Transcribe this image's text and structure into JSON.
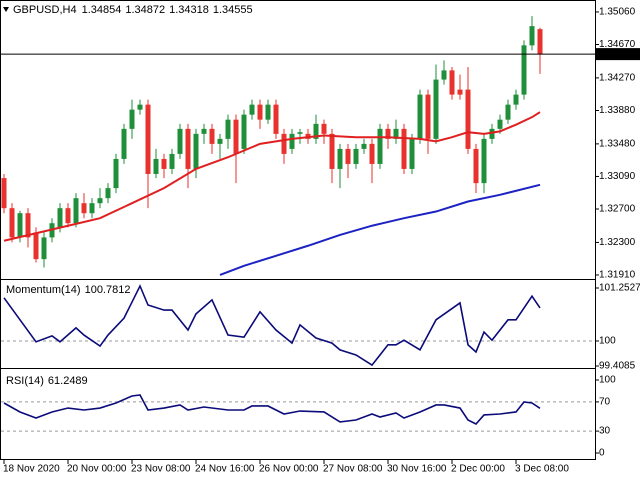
{
  "chart_data": [
    {
      "type": "candlestick",
      "symbol": "GBPUSD,H4",
      "categories": [
        "18 Nov 2020",
        null,
        null,
        null,
        null,
        null,
        null,
        null,
        "20 Nov 00:00",
        null,
        null,
        null,
        null,
        null,
        null,
        null,
        "23 Nov 08:00",
        null,
        null,
        null,
        null,
        null,
        null,
        null,
        "24 Nov 16:00",
        null,
        null,
        null,
        null,
        null,
        null,
        null,
        "26 Nov 00:00",
        null,
        null,
        null,
        null,
        null,
        null,
        null,
        "27 Nov 08:00",
        null,
        null,
        null,
        null,
        null,
        null,
        null,
        "30 Nov 16:00",
        null,
        null,
        null,
        null,
        null,
        null,
        null,
        "2 Dec 00:00",
        null,
        null,
        null,
        null,
        null,
        null,
        null,
        "3 Dec 08:00",
        null,
        null,
        null
      ],
      "open": [
        1.3307,
        1.3271,
        1.3236,
        1.3265,
        1.3242,
        1.321,
        1.3236,
        1.3248,
        1.3271,
        1.3253,
        1.3277,
        1.3265,
        1.3277,
        1.3283,
        1.3295,
        1.333,
        1.3366,
        1.3389,
        1.3395,
        1.3312,
        1.333,
        1.3318,
        1.3336,
        1.3366,
        1.3318,
        1.336,
        1.3366,
        1.3348,
        1.3354,
        1.3377,
        1.3342,
        1.3383,
        1.3395,
        1.3377,
        1.3395,
        1.336,
        1.3342,
        1.336,
        1.336,
        1.3354,
        1.3372,
        1.336,
        1.3318,
        1.3342,
        1.3324,
        1.3342,
        1.3348,
        1.3324,
        1.3366,
        1.3354,
        1.3366,
        1.3318,
        1.3354,
        1.3407,
        1.3354,
        1.3425,
        1.3436,
        1.3413,
        1.3413,
        1.3342,
        1.3301,
        1.3354,
        1.3366,
        1.3377,
        1.3395,
        1.3407,
        1.3466,
        1.34854
      ],
      "high": [
        1.3312,
        1.3277,
        1.3268,
        1.3271,
        1.3248,
        1.3242,
        1.3259,
        1.3277,
        1.3277,
        1.3289,
        1.3289,
        1.3283,
        1.3295,
        1.3301,
        1.3336,
        1.3372,
        1.3401,
        1.3401,
        1.3401,
        1.3342,
        1.3336,
        1.3342,
        1.3372,
        1.3372,
        1.3366,
        1.3372,
        1.3372,
        1.336,
        1.3383,
        1.3383,
        1.3389,
        1.3401,
        1.3401,
        1.3401,
        1.3401,
        1.3366,
        1.3366,
        1.3366,
        1.3366,
        1.3383,
        1.3377,
        1.3366,
        1.3348,
        1.3348,
        1.3348,
        1.3354,
        1.3354,
        1.3372,
        1.3372,
        1.3377,
        1.3372,
        1.336,
        1.3413,
        1.3413,
        1.3443,
        1.3448,
        1.344,
        1.3431,
        1.344,
        1.3348,
        1.336,
        1.3372,
        1.3383,
        1.3401,
        1.3413,
        1.3472,
        1.3501,
        1.34872
      ],
      "low": [
        1.3265,
        1.323,
        1.323,
        1.3224,
        1.3206,
        1.32,
        1.323,
        1.3242,
        1.3248,
        1.3248,
        1.3259,
        1.3259,
        1.3271,
        1.3277,
        1.3289,
        1.3324,
        1.3354,
        1.3383,
        1.3271,
        1.3307,
        1.3307,
        1.3312,
        1.333,
        1.3295,
        1.3307,
        1.3348,
        1.3336,
        1.333,
        1.3342,
        1.3301,
        1.3336,
        1.3377,
        1.3366,
        1.3372,
        1.3354,
        1.3324,
        1.3336,
        1.3348,
        1.3348,
        1.3348,
        1.3348,
        1.3301,
        1.3295,
        1.3307,
        1.3318,
        1.3336,
        1.3301,
        1.3318,
        1.3342,
        1.3348,
        1.3312,
        1.3312,
        1.3348,
        1.3336,
        1.3348,
        1.3419,
        1.3401,
        1.3401,
        1.3336,
        1.3289,
        1.3289,
        1.3348,
        1.336,
        1.3372,
        1.3389,
        1.3401,
        1.346,
        1.34318
      ],
      "close": [
        1.3271,
        1.3236,
        1.3265,
        1.3236,
        1.321,
        1.3236,
        1.3253,
        1.3271,
        1.3253,
        1.3283,
        1.3265,
        1.3277,
        1.3283,
        1.3295,
        1.333,
        1.3366,
        1.3389,
        1.3395,
        1.3312,
        1.333,
        1.3318,
        1.3336,
        1.3366,
        1.3318,
        1.336,
        1.3366,
        1.3348,
        1.3354,
        1.3377,
        1.3336,
        1.3383,
        1.3395,
        1.3377,
        1.3395,
        1.336,
        1.3336,
        1.336,
        1.3362,
        1.3354,
        1.3372,
        1.336,
        1.3318,
        1.3342,
        1.3324,
        1.3342,
        1.3348,
        1.3324,
        1.3366,
        1.3354,
        1.3366,
        1.3318,
        1.3354,
        1.3407,
        1.3354,
        1.3425,
        1.3436,
        1.3407,
        1.3407,
        1.3342,
        1.3301,
        1.3354,
        1.3366,
        1.3377,
        1.3395,
        1.3407,
        1.3466,
        1.3489,
        1.34555
      ],
      "up_color": "#1f8f3a",
      "down_color": "#e8322d",
      "lines": [
        {
          "color": "#e02020",
          "x": [
            0,
            4,
            8,
            12,
            16,
            20,
            24,
            28,
            32,
            36,
            40,
            44,
            48,
            52,
            54,
            56,
            58,
            60,
            62,
            64,
            66,
            67
          ],
          "values": [
            1.3232,
            1.3241,
            1.325,
            1.3259,
            1.3277,
            1.3295,
            1.3318,
            1.3332,
            1.3348,
            1.3354,
            1.3358,
            1.3356,
            1.3356,
            1.3354,
            1.3351,
            1.3356,
            1.3362,
            1.336,
            1.3363,
            1.3371,
            1.338,
            1.3386
          ]
        },
        {
          "color": "#1c22c4",
          "x": [
            27,
            30,
            34,
            38,
            42,
            46,
            50,
            54,
            58,
            62,
            67
          ],
          "values": [
            1.3191,
            1.3202,
            1.3214,
            1.3226,
            1.3239,
            1.325,
            1.3259,
            1.3267,
            1.3279,
            1.3287,
            1.3299
          ]
        }
      ],
      "ylim": [
        1.31874,
        1.35191
      ],
      "yticks": [
        {
          "value": 1.3506,
          "label": "1.35060"
        },
        {
          "value": 1.3467,
          "label": "1.34670"
        },
        {
          "value": 1.3427,
          "label": "1.34270"
        },
        {
          "value": 1.3388,
          "label": "1.33880"
        },
        {
          "value": 1.3348,
          "label": "1.33480"
        },
        {
          "value": 1.3309,
          "label": "1.33090"
        },
        {
          "value": 1.327,
          "label": "1.32700"
        },
        {
          "value": 1.323,
          "label": "1.32300"
        },
        {
          "value": 1.3191,
          "label": "1.31910"
        }
      ]
    },
    {
      "type": "line",
      "name": "Momentum(14)",
      "color": "#0b0b7a",
      "x": [
        0,
        2,
        4,
        6,
        7,
        9,
        10,
        12,
        13,
        15,
        17,
        18,
        20,
        21,
        23,
        24,
        26,
        28,
        30,
        32,
        34,
        36,
        37,
        39,
        41,
        42,
        44,
        46,
        48,
        49,
        50,
        52,
        54,
        57,
        58,
        59,
        60,
        61,
        63,
        64,
        66,
        67
      ],
      "values": [
        101.02,
        100.5,
        99.98,
        100.12,
        99.98,
        100.31,
        100.14,
        99.88,
        100.14,
        100.54,
        101.3,
        100.85,
        100.73,
        100.73,
        100.26,
        100.64,
        100.97,
        100.14,
        100.09,
        100.69,
        100.26,
        99.95,
        100.38,
        100.07,
        99.95,
        99.79,
        99.67,
        99.43,
        99.91,
        99.91,
        100.02,
        99.79,
        100.5,
        100.9,
        99.91,
        99.74,
        100.21,
        100.02,
        100.5,
        100.5,
        101.06,
        100.7812
      ],
      "ylim": [
        99.385,
        101.418
      ],
      "yticks": [
        101.2527,
        100,
        99.4085
      ],
      "levels": [
        100
      ]
    },
    {
      "type": "line",
      "name": "RSI(14)",
      "color": "#0b0b7a",
      "x": [
        0,
        2,
        4,
        6,
        8,
        10,
        12,
        14,
        16,
        17,
        18,
        20,
        22,
        23,
        25,
        28,
        30,
        31,
        33,
        35,
        37,
        40,
        42,
        44,
        46,
        47,
        49,
        50,
        52,
        54,
        55,
        57,
        58,
        59,
        60,
        62,
        64,
        65,
        66,
        67
      ],
      "values": [
        68.5,
        56.2,
        47.9,
        56.2,
        61.6,
        58.9,
        61.6,
        68.5,
        78.1,
        79.5,
        58.9,
        61.6,
        65.8,
        58.9,
        63.0,
        58.9,
        58.9,
        64.4,
        64.4,
        53.4,
        57.5,
        56.2,
        42.5,
        45.2,
        53.4,
        49.3,
        54.8,
        47.9,
        56.2,
        65.8,
        65.8,
        61.6,
        45.2,
        39.7,
        52.1,
        53.4,
        56.2,
        69.9,
        68.5,
        61.2489
      ],
      "ylim": [
        -9.6,
        113.7
      ],
      "yticks": [
        100,
        70,
        30,
        0
      ],
      "levels": [
        70,
        30
      ]
    }
  ]
}
